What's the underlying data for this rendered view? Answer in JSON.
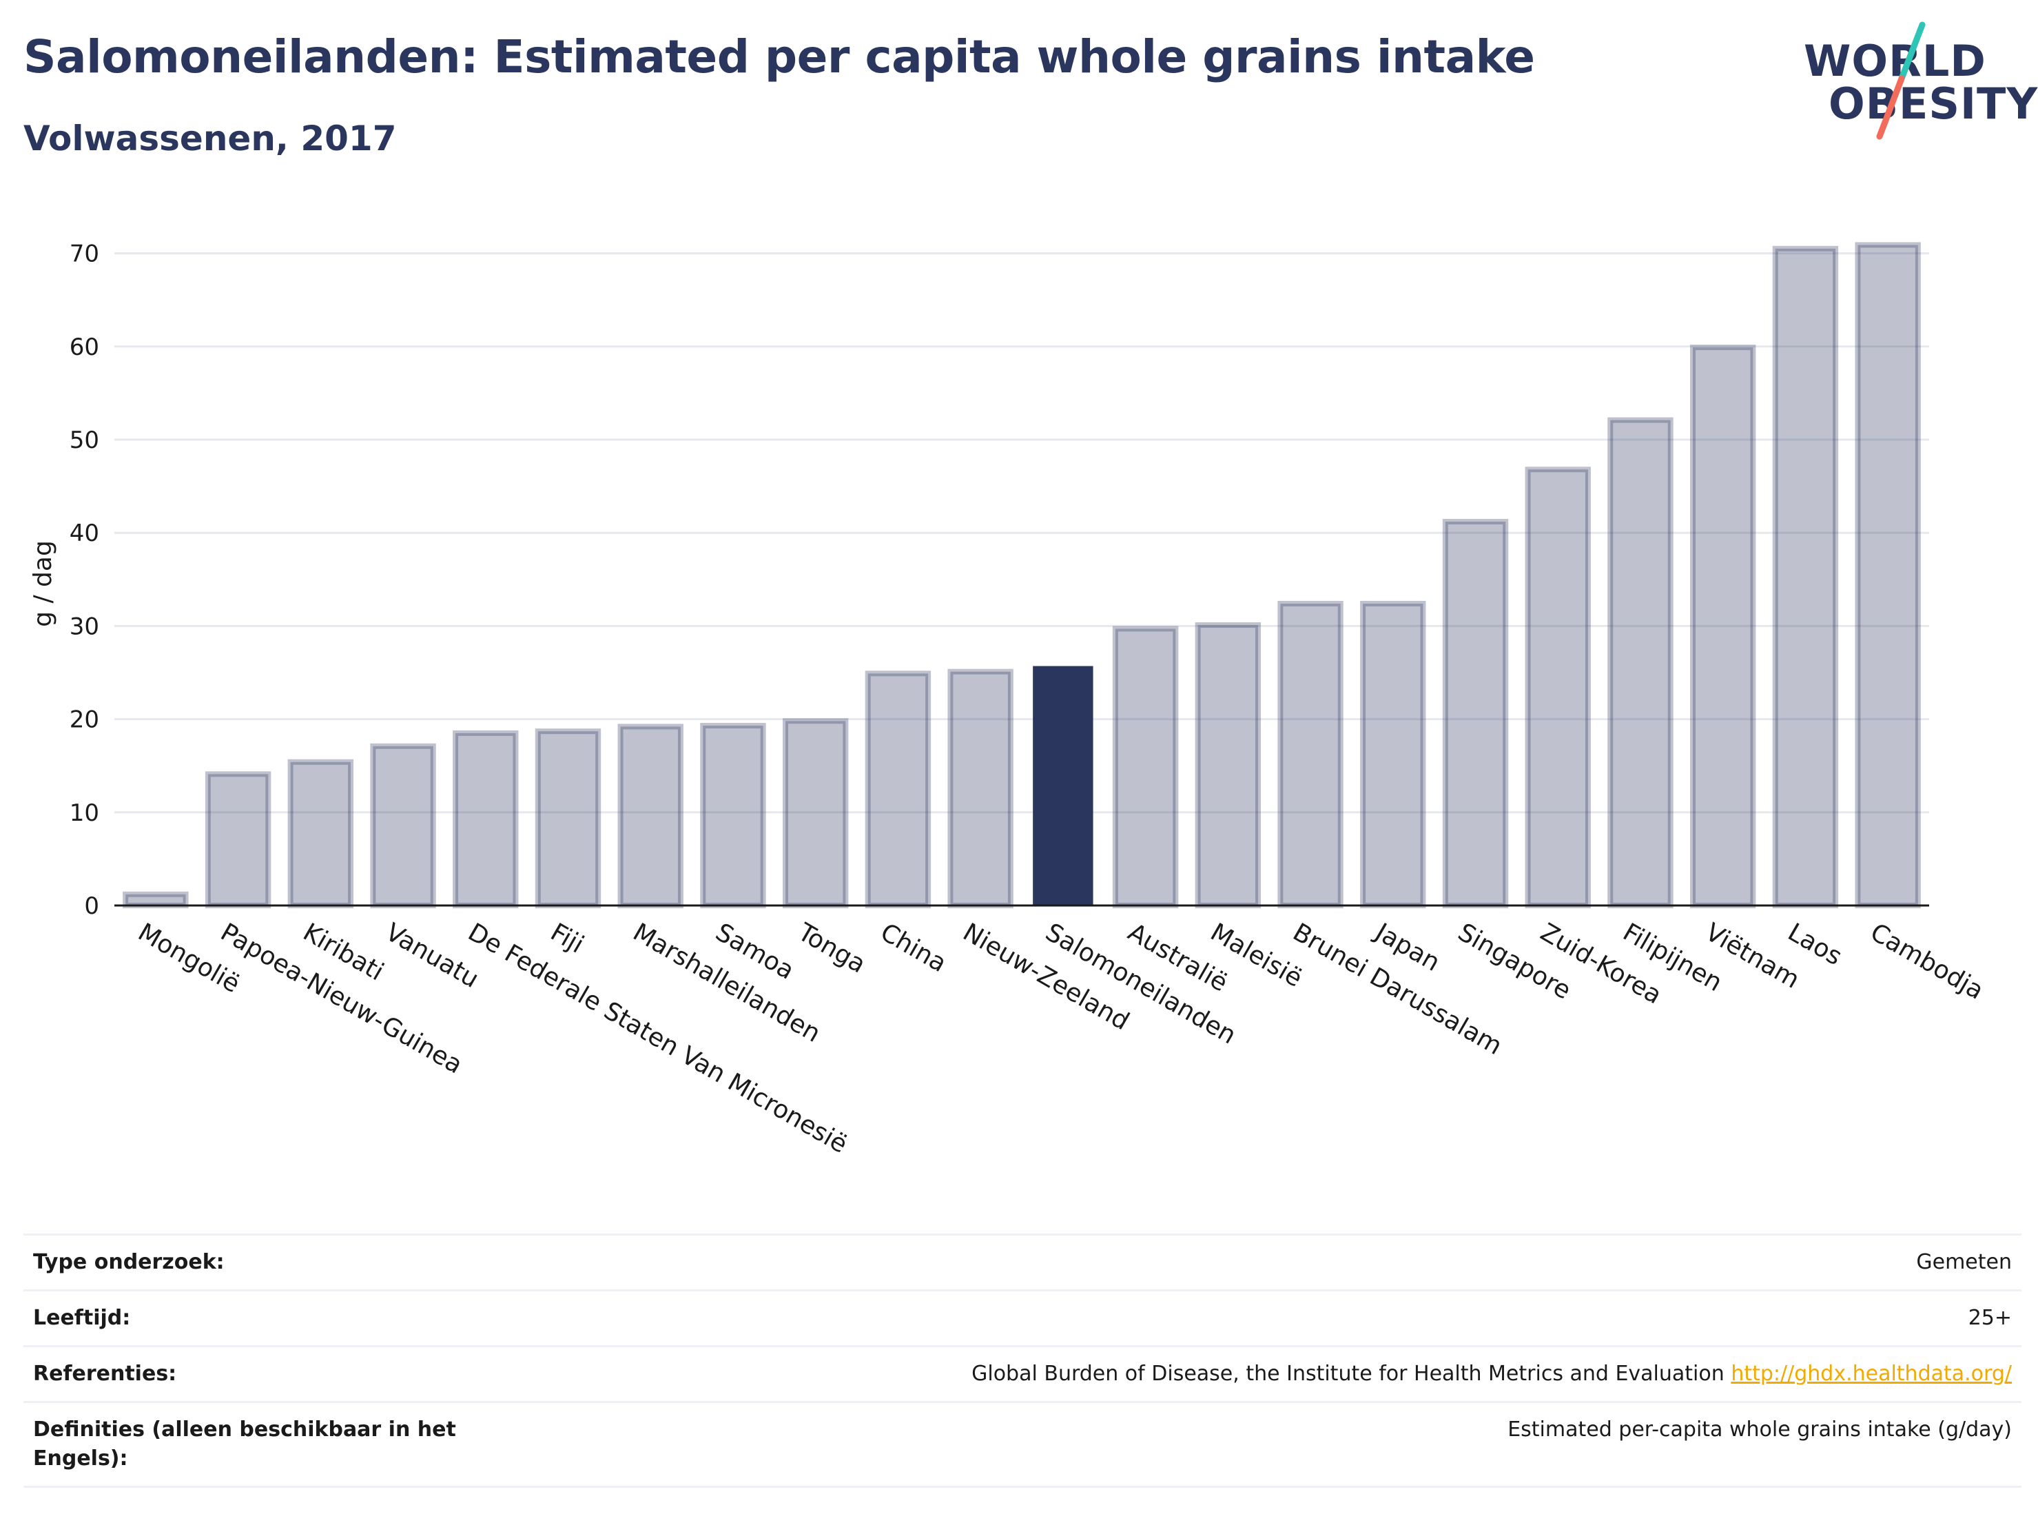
{
  "header": {
    "title": "Salomoneilanden: Estimated per capita whole grains intake",
    "subtitle": "Volwassenen, 2017"
  },
  "logo": {
    "line1": "WORLD",
    "line2": "OBESITY",
    "accent_teal": "#2ec4b6",
    "accent_coral": "#f26b5b"
  },
  "colors": {
    "bar_default": "#2a365d",
    "bar_highlight": "#2a365d",
    "text_dark": "#2a365d"
  },
  "chart_data": {
    "type": "bar",
    "title": "Salomoneilanden: Estimated per capita whole grains intake",
    "subtitle": "Volwassenen, 2017",
    "xlabel": "",
    "ylabel": "g / dag",
    "ylim": [
      0,
      75
    ],
    "yticks": [
      0,
      10,
      20,
      30,
      40,
      50,
      60,
      70
    ],
    "grid": true,
    "highlight": "Salomoneilanden",
    "categories": [
      "Mongolië",
      "Papoea-Nieuw-Guinea",
      "Kiribati",
      "Vanuatu",
      "De Federale Staten Van Micronesië",
      "Fiji",
      "Marshalleilanden",
      "Samoa",
      "Tonga",
      "China",
      "Nieuw-Zeeland",
      "Salomoneilanden",
      "Australië",
      "Maleisië",
      "Brunei Darussalam",
      "Japan",
      "Singapore",
      "Zuid-Korea",
      "Filipijnen",
      "Viëtnam",
      "Laos",
      "Cambodja"
    ],
    "values": [
      1.2,
      14.1,
      15.4,
      17.1,
      18.5,
      18.7,
      19.2,
      19.3,
      19.8,
      24.9,
      25.1,
      25.7,
      29.7,
      30.1,
      32.4,
      32.4,
      41.2,
      46.8,
      52.1,
      59.9,
      70.5,
      70.9
    ]
  },
  "info": {
    "rows": [
      {
        "label": "Type onderzoek:",
        "value": "Gemeten"
      },
      {
        "label": "Leeftijd:",
        "value": "25+"
      },
      {
        "label": "Referenties:",
        "value": "Global Burden of Disease, the Institute for Health Metrics and Evaluation",
        "link": "http://ghdx.healthdata.org/"
      },
      {
        "label": "Definities (alleen beschikbaar in het Engels):",
        "value": "Estimated per-capita whole grains intake (g/day)"
      }
    ]
  }
}
